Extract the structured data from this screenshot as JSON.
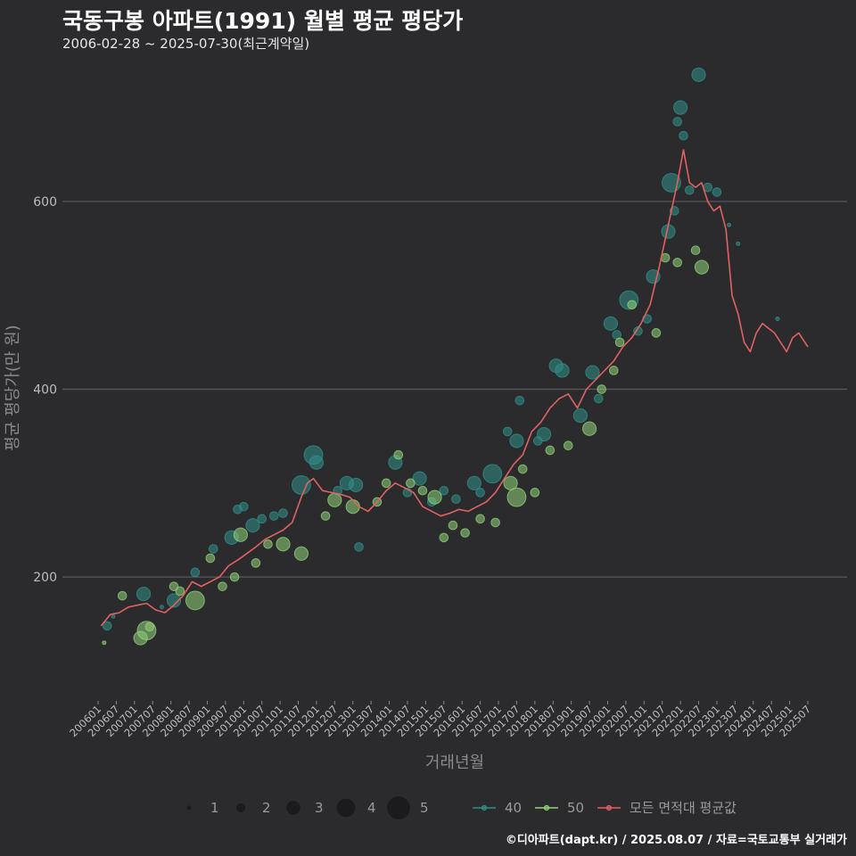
{
  "header": {
    "title": "국동구봉 아파트(1991) 월별 평균 평당가",
    "subtitle": "2006-02-28 ~ 2025-07-30(최근계약일)"
  },
  "caption": "©디아파트(dapt.kr) / 2025.08.07 / 자료=국토교통부 실거래가",
  "chart_data": {
    "type": "scatter",
    "xlabel": "거래년월",
    "ylabel": "평균 평당가(만 원)",
    "x_ticks": [
      "200601",
      "200607",
      "200701",
      "200707",
      "200801",
      "200807",
      "200901",
      "200907",
      "201001",
      "201007",
      "201101",
      "201107",
      "201201",
      "201207",
      "201301",
      "201307",
      "201401",
      "201407",
      "201501",
      "201507",
      "201601",
      "201607",
      "201701",
      "201707",
      "201801",
      "201807",
      "201901",
      "201907",
      "202001",
      "202007",
      "202101",
      "202107",
      "202201",
      "202207",
      "202301",
      "202307",
      "202401",
      "202407",
      "202501",
      "202507"
    ],
    "y_ticks": [
      200,
      400,
      600
    ],
    "ylim": [
      70,
      750
    ],
    "x_range": [
      "2006-01",
      "2025-07"
    ],
    "grid": true,
    "colors": {
      "background": "#2b2a2c",
      "grid": "#5a595b",
      "s40": "#2f8f8a",
      "s50": "#8fd17a",
      "avg": "#e06262"
    },
    "size_legend": {
      "labels": [
        "1",
        "2",
        "3",
        "4",
        "5"
      ]
    },
    "series_legend": [
      {
        "key": "s40",
        "label": "40"
      },
      {
        "key": "s50",
        "label": "50"
      },
      {
        "key": "avg",
        "label": "모든 면적대 평균값"
      }
    ],
    "series": [
      {
        "name": "40",
        "key": "s40",
        "points": [
          [
            "2006-04",
            148,
            2
          ],
          [
            "2006-06",
            158,
            1
          ],
          [
            "2007-04",
            182,
            3
          ],
          [
            "2007-10",
            168,
            1
          ],
          [
            "2008-02",
            175,
            3
          ],
          [
            "2008-09",
            205,
            2
          ],
          [
            "2009-03",
            230,
            2
          ],
          [
            "2009-09",
            242,
            3
          ],
          [
            "2009-11",
            272,
            2
          ],
          [
            "2010-01",
            275,
            2
          ],
          [
            "2010-04",
            255,
            3
          ],
          [
            "2010-07",
            262,
            2
          ],
          [
            "2010-11",
            265,
            2
          ],
          [
            "2011-02",
            268,
            2
          ],
          [
            "2011-08",
            298,
            4
          ],
          [
            "2011-12",
            330,
            4
          ],
          [
            "2012-01",
            322,
            3
          ],
          [
            "2012-08",
            292,
            2
          ],
          [
            "2012-11",
            300,
            3
          ],
          [
            "2013-02",
            298,
            3
          ],
          [
            "2013-03",
            232,
            2
          ],
          [
            "2014-03",
            322,
            3
          ],
          [
            "2014-07",
            290,
            2
          ],
          [
            "2014-11",
            305,
            3
          ],
          [
            "2015-03",
            280,
            2
          ],
          [
            "2015-07",
            292,
            2
          ],
          [
            "2015-11",
            283,
            2
          ],
          [
            "2016-05",
            300,
            3
          ],
          [
            "2016-07",
            290,
            2
          ],
          [
            "2016-11",
            310,
            4
          ],
          [
            "2017-04",
            355,
            2
          ],
          [
            "2017-07",
            345,
            3
          ],
          [
            "2017-08",
            388,
            2
          ],
          [
            "2018-02",
            345,
            2
          ],
          [
            "2018-04",
            352,
            3
          ],
          [
            "2018-08",
            425,
            3
          ],
          [
            "2018-10",
            420,
            3
          ],
          [
            "2019-04",
            372,
            3
          ],
          [
            "2019-08",
            418,
            3
          ],
          [
            "2019-10",
            390,
            2
          ],
          [
            "2020-02",
            470,
            3
          ],
          [
            "2020-04",
            458,
            2
          ],
          [
            "2020-08",
            495,
            4
          ],
          [
            "2020-11",
            462,
            2
          ],
          [
            "2021-02",
            475,
            2
          ],
          [
            "2021-04",
            520,
            3
          ],
          [
            "2021-09",
            568,
            3
          ],
          [
            "2021-10",
            620,
            4
          ],
          [
            "2021-11",
            590,
            2
          ],
          [
            "2021-12",
            685,
            2
          ],
          [
            "2022-01",
            700,
            3
          ],
          [
            "2022-02",
            670,
            2
          ],
          [
            "2022-04",
            612,
            2
          ],
          [
            "2022-07",
            735,
            3
          ],
          [
            "2022-10",
            615,
            2
          ],
          [
            "2023-01",
            610,
            2
          ],
          [
            "2023-05",
            575,
            1
          ],
          [
            "2023-08",
            555,
            1
          ],
          [
            "2024-09",
            475,
            1
          ]
        ]
      },
      {
        "name": "50",
        "key": "s50",
        "points": [
          [
            "2006-03",
            130,
            1
          ],
          [
            "2006-09",
            180,
            2
          ],
          [
            "2007-03",
            135,
            3
          ],
          [
            "2007-05",
            143,
            4
          ],
          [
            "2007-06",
            147,
            2
          ],
          [
            "2008-02",
            190,
            2
          ],
          [
            "2008-04",
            185,
            2
          ],
          [
            "2008-09",
            175,
            4
          ],
          [
            "2009-02",
            220,
            2
          ],
          [
            "2009-06",
            190,
            2
          ],
          [
            "2009-10",
            200,
            2
          ],
          [
            "2009-12",
            245,
            3
          ],
          [
            "2010-05",
            215,
            2
          ],
          [
            "2010-09",
            235,
            2
          ],
          [
            "2011-02",
            235,
            3
          ],
          [
            "2011-08",
            225,
            3
          ],
          [
            "2012-04",
            265,
            2
          ],
          [
            "2012-07",
            282,
            3
          ],
          [
            "2013-01",
            275,
            3
          ],
          [
            "2013-09",
            280,
            2
          ],
          [
            "2013-12",
            300,
            2
          ],
          [
            "2014-04",
            330,
            2
          ],
          [
            "2014-08",
            300,
            2
          ],
          [
            "2014-12",
            292,
            2
          ],
          [
            "2015-04",
            285,
            3
          ],
          [
            "2015-07",
            242,
            2
          ],
          [
            "2015-10",
            255,
            2
          ],
          [
            "2016-02",
            247,
            2
          ],
          [
            "2016-07",
            262,
            2
          ],
          [
            "2016-12",
            258,
            2
          ],
          [
            "2017-05",
            300,
            3
          ],
          [
            "2017-07",
            285,
            4
          ],
          [
            "2017-09",
            315,
            2
          ],
          [
            "2018-01",
            290,
            2
          ],
          [
            "2018-06",
            335,
            2
          ],
          [
            "2018-12",
            340,
            2
          ],
          [
            "2019-07",
            358,
            3
          ],
          [
            "2019-11",
            400,
            2
          ],
          [
            "2020-03",
            420,
            2
          ],
          [
            "2020-05",
            450,
            2
          ],
          [
            "2020-09",
            490,
            2
          ],
          [
            "2021-05",
            460,
            2
          ],
          [
            "2021-08",
            540,
            2
          ],
          [
            "2021-12",
            535,
            2
          ],
          [
            "2022-06",
            548,
            2
          ],
          [
            "2022-08",
            530,
            3
          ]
        ]
      },
      {
        "name": "모든 면적대 평균값",
        "key": "avg",
        "points": [
          [
            "2006-02",
            148
          ],
          [
            "2006-05",
            160
          ],
          [
            "2006-08",
            162
          ],
          [
            "2006-11",
            168
          ],
          [
            "2007-02",
            170
          ],
          [
            "2007-05",
            172
          ],
          [
            "2007-08",
            165
          ],
          [
            "2007-11",
            162
          ],
          [
            "2008-02",
            170
          ],
          [
            "2008-05",
            180
          ],
          [
            "2008-08",
            195
          ],
          [
            "2008-11",
            190
          ],
          [
            "2009-02",
            195
          ],
          [
            "2009-05",
            200
          ],
          [
            "2009-08",
            212
          ],
          [
            "2009-11",
            218
          ],
          [
            "2010-02",
            225
          ],
          [
            "2010-05",
            232
          ],
          [
            "2010-08",
            240
          ],
          [
            "2010-11",
            245
          ],
          [
            "2011-02",
            250
          ],
          [
            "2011-05",
            258
          ],
          [
            "2011-08",
            285
          ],
          [
            "2011-10",
            300
          ],
          [
            "2011-12",
            305
          ],
          [
            "2012-03",
            292
          ],
          [
            "2012-06",
            290
          ],
          [
            "2012-09",
            288
          ],
          [
            "2012-12",
            285
          ],
          [
            "2013-03",
            275
          ],
          [
            "2013-06",
            270
          ],
          [
            "2013-09",
            280
          ],
          [
            "2013-12",
            292
          ],
          [
            "2014-03",
            300
          ],
          [
            "2014-06",
            295
          ],
          [
            "2014-09",
            290
          ],
          [
            "2014-12",
            275
          ],
          [
            "2015-03",
            270
          ],
          [
            "2015-06",
            265
          ],
          [
            "2015-09",
            268
          ],
          [
            "2015-12",
            272
          ],
          [
            "2016-03",
            270
          ],
          [
            "2016-06",
            275
          ],
          [
            "2016-09",
            280
          ],
          [
            "2016-12",
            290
          ],
          [
            "2017-03",
            305
          ],
          [
            "2017-06",
            320
          ],
          [
            "2017-09",
            330
          ],
          [
            "2017-12",
            355
          ],
          [
            "2018-03",
            365
          ],
          [
            "2018-06",
            380
          ],
          [
            "2018-09",
            390
          ],
          [
            "2018-12",
            395
          ],
          [
            "2019-03",
            380
          ],
          [
            "2019-06",
            400
          ],
          [
            "2019-09",
            410
          ],
          [
            "2019-12",
            420
          ],
          [
            "2020-03",
            430
          ],
          [
            "2020-06",
            445
          ],
          [
            "2020-09",
            455
          ],
          [
            "2020-12",
            470
          ],
          [
            "2021-03",
            490
          ],
          [
            "2021-06",
            530
          ],
          [
            "2021-09",
            575
          ],
          [
            "2021-12",
            620
          ],
          [
            "2022-02",
            655
          ],
          [
            "2022-04",
            620
          ],
          [
            "2022-06",
            615
          ],
          [
            "2022-08",
            620
          ],
          [
            "2022-10",
            600
          ],
          [
            "2022-12",
            590
          ],
          [
            "2023-02",
            595
          ],
          [
            "2023-04",
            570
          ],
          [
            "2023-06",
            500
          ],
          [
            "2023-08",
            480
          ],
          [
            "2023-10",
            450
          ],
          [
            "2023-12",
            440
          ],
          [
            "2024-02",
            460
          ],
          [
            "2024-04",
            470
          ],
          [
            "2024-06",
            465
          ],
          [
            "2024-08",
            460
          ],
          [
            "2024-10",
            450
          ],
          [
            "2024-12",
            440
          ],
          [
            "2025-02",
            455
          ],
          [
            "2025-04",
            460
          ],
          [
            "2025-07",
            445
          ]
        ]
      }
    ]
  }
}
